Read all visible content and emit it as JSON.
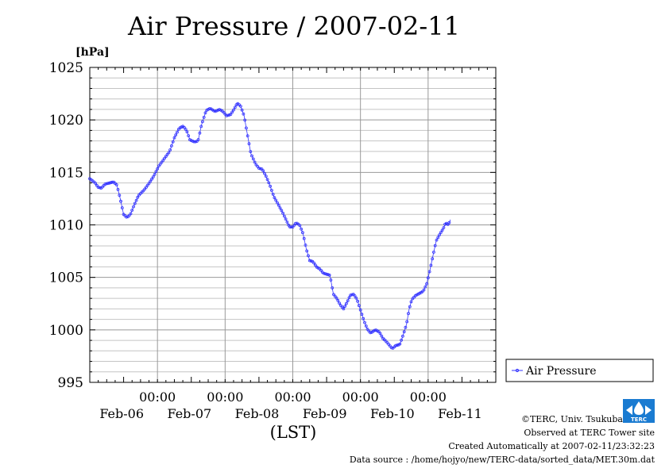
{
  "chart_data": {
    "type": "line",
    "title": "Air Pressure / 2007-02-11",
    "ylabel": "[hPa]",
    "xlabel": "(LST)",
    "ylim": [
      995,
      1025
    ],
    "yticks": [
      995,
      1000,
      1005,
      1010,
      1015,
      1020,
      1025
    ],
    "ytick_labels": [
      "995",
      "1000",
      "1005",
      "1010",
      "1015",
      "1020",
      "1025"
    ],
    "xlim": [
      0,
      6
    ],
    "xlim_note": "days from 2007-02-05 12:00 LST",
    "xticks": [
      {
        "x": 1,
        "time": "00:00",
        "date": "Feb-06"
      },
      {
        "x": 2,
        "time": "00:00",
        "date": "Feb-07"
      },
      {
        "x": 3,
        "time": "00:00",
        "date": "Feb-08"
      },
      {
        "x": 4,
        "time": "00:00",
        "date": "Feb-09"
      },
      {
        "x": 5,
        "time": "00:00",
        "date": "Feb-10"
      },
      {
        "x": 6,
        "time": "00:00",
        "date": "Feb-11"
      }
    ],
    "grid": true,
    "legend": "bottom-right",
    "series": [
      {
        "name": "Air Pressure",
        "color": "#3333ff",
        "points": [
          [
            0.0,
            1014.4
          ],
          [
            0.08,
            1014.0
          ],
          [
            0.12,
            1013.6
          ],
          [
            0.17,
            1013.5
          ],
          [
            0.23,
            1013.9
          ],
          [
            0.3,
            1014.0
          ],
          [
            0.35,
            1014.1
          ],
          [
            0.4,
            1013.8
          ],
          [
            0.45,
            1012.5
          ],
          [
            0.5,
            1011.0
          ],
          [
            0.55,
            1010.7
          ],
          [
            0.6,
            1011.0
          ],
          [
            0.65,
            1011.8
          ],
          [
            0.72,
            1012.8
          ],
          [
            0.8,
            1013.3
          ],
          [
            0.88,
            1014.0
          ],
          [
            0.95,
            1014.7
          ],
          [
            1.02,
            1015.6
          ],
          [
            1.1,
            1016.3
          ],
          [
            1.18,
            1017.0
          ],
          [
            1.25,
            1018.3
          ],
          [
            1.32,
            1019.2
          ],
          [
            1.38,
            1019.4
          ],
          [
            1.43,
            1019.0
          ],
          [
            1.48,
            1018.1
          ],
          [
            1.55,
            1017.9
          ],
          [
            1.6,
            1018.0
          ],
          [
            1.65,
            1019.5
          ],
          [
            1.72,
            1020.9
          ],
          [
            1.78,
            1021.1
          ],
          [
            1.85,
            1020.8
          ],
          [
            1.92,
            1021.0
          ],
          [
            1.97,
            1020.8
          ],
          [
            2.02,
            1020.4
          ],
          [
            2.08,
            1020.5
          ],
          [
            2.13,
            1021.0
          ],
          [
            2.18,
            1021.6
          ],
          [
            2.23,
            1021.3
          ],
          [
            2.28,
            1020.4
          ],
          [
            2.33,
            1018.6
          ],
          [
            2.38,
            1016.8
          ],
          [
            2.45,
            1015.8
          ],
          [
            2.5,
            1015.4
          ],
          [
            2.55,
            1015.3
          ],
          [
            2.6,
            1014.7
          ],
          [
            2.66,
            1013.8
          ],
          [
            2.72,
            1012.7
          ],
          [
            2.78,
            1012.0
          ],
          [
            2.84,
            1011.3
          ],
          [
            2.9,
            1010.5
          ],
          [
            2.95,
            1009.8
          ],
          [
            3.0,
            1009.8
          ],
          [
            3.05,
            1010.2
          ],
          [
            3.1,
            1010.0
          ],
          [
            3.15,
            1009.2
          ],
          [
            3.2,
            1007.7
          ],
          [
            3.25,
            1006.6
          ],
          [
            3.3,
            1006.5
          ],
          [
            3.35,
            1006.0
          ],
          [
            3.4,
            1005.8
          ],
          [
            3.45,
            1005.4
          ],
          [
            3.5,
            1005.3
          ],
          [
            3.55,
            1005.2
          ],
          [
            3.6,
            1003.4
          ],
          [
            3.65,
            1003.0
          ],
          [
            3.7,
            1002.4
          ],
          [
            3.75,
            1002.0
          ],
          [
            3.8,
            1002.6
          ],
          [
            3.85,
            1003.3
          ],
          [
            3.9,
            1003.4
          ],
          [
            3.95,
            1002.9
          ],
          [
            4.0,
            1001.9
          ],
          [
            4.05,
            1000.9
          ],
          [
            4.1,
            1000.1
          ],
          [
            4.15,
            999.7
          ],
          [
            4.22,
            1000.0
          ],
          [
            4.28,
            999.8
          ],
          [
            4.33,
            999.2
          ],
          [
            4.38,
            998.9
          ],
          [
            4.42,
            998.6
          ],
          [
            4.47,
            998.2
          ],
          [
            4.52,
            998.5
          ],
          [
            4.58,
            998.6
          ],
          [
            4.62,
            999.3
          ],
          [
            4.68,
            1000.5
          ],
          [
            4.72,
            1002.0
          ],
          [
            4.76,
            1002.9
          ],
          [
            4.82,
            1003.3
          ],
          [
            4.88,
            1003.5
          ],
          [
            4.93,
            1003.7
          ],
          [
            4.98,
            1004.4
          ],
          [
            5.03,
            1005.8
          ],
          [
            5.08,
            1007.3
          ],
          [
            5.12,
            1008.5
          ],
          [
            5.18,
            1009.2
          ],
          [
            5.22,
            1009.6
          ],
          [
            5.26,
            1010.2
          ],
          [
            5.3,
            1010.0
          ],
          [
            5.33,
            1010.5
          ]
        ]
      }
    ]
  },
  "footer": {
    "copyright": "©TERC, Univ. Tsukuba",
    "observed": "Observed at TERC Tower site",
    "created": "Created Automatically at 2007-02-11/23:32:23",
    "source": "Data source : /home/hojyo/new/TERC-data/sorted_data/MET.30m.dat",
    "logo_text": "TERC"
  }
}
